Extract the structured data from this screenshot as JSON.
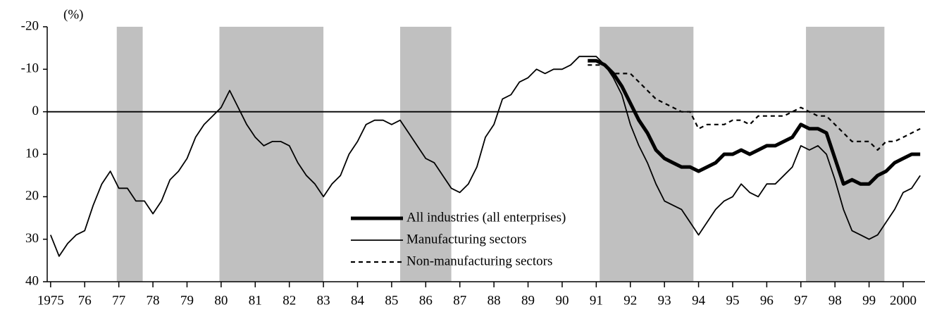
{
  "chart_data": {
    "type": "line",
    "y_unit_label": "(%)",
    "xlim": [
      1974.9,
      2000.64
    ],
    "xticks": [
      {
        "value": 1975,
        "label": "1975"
      },
      {
        "value": 1976,
        "label": "76"
      },
      {
        "value": 1977,
        "label": "77"
      },
      {
        "value": 1978,
        "label": "78"
      },
      {
        "value": 1979,
        "label": "79"
      },
      {
        "value": 1980,
        "label": "80"
      },
      {
        "value": 1981,
        "label": "81"
      },
      {
        "value": 1982,
        "label": "82"
      },
      {
        "value": 1983,
        "label": "83"
      },
      {
        "value": 1984,
        "label": "84"
      },
      {
        "value": 1985,
        "label": "85"
      },
      {
        "value": 1986,
        "label": "86"
      },
      {
        "value": 1987,
        "label": "87"
      },
      {
        "value": 1988,
        "label": "88"
      },
      {
        "value": 1989,
        "label": "89"
      },
      {
        "value": 1990,
        "label": "90"
      },
      {
        "value": 1991,
        "label": "91"
      },
      {
        "value": 1992,
        "label": "92"
      },
      {
        "value": 1993,
        "label": "93"
      },
      {
        "value": 1994,
        "label": "94"
      },
      {
        "value": 1995,
        "label": "95"
      },
      {
        "value": 1996,
        "label": "96"
      },
      {
        "value": 1997,
        "label": "97"
      },
      {
        "value": 1998,
        "label": "98"
      },
      {
        "value": 1999,
        "label": "99"
      },
      {
        "value": 2000,
        "label": "2000"
      }
    ],
    "ylim": [
      -20,
      40
    ],
    "y_inverted": true,
    "yticks": [
      -20,
      -10,
      0,
      10,
      20,
      30,
      40
    ],
    "reference_line": 0,
    "shaded_periods": [
      [
        1976.94,
        1977.7
      ],
      [
        1979.95,
        1983.0
      ],
      [
        1985.25,
        1986.75
      ],
      [
        1991.1,
        1993.85
      ],
      [
        1997.15,
        1999.45
      ]
    ],
    "shade_color": "#c0c0c0",
    "x": [
      1975,
      1975.25,
      1975.5,
      1975.75,
      1976,
      1976.25,
      1976.5,
      1976.75,
      1977,
      1977.25,
      1977.5,
      1977.75,
      1978,
      1978.25,
      1978.5,
      1978.75,
      1979,
      1979.25,
      1979.5,
      1979.75,
      1980,
      1980.25,
      1980.5,
      1980.75,
      1981,
      1981.25,
      1981.5,
      1981.75,
      1982,
      1982.25,
      1982.5,
      1982.75,
      1983,
      1983.25,
      1983.5,
      1983.75,
      1984,
      1984.25,
      1984.5,
      1984.75,
      1985,
      1985.25,
      1985.5,
      1985.75,
      1986,
      1986.25,
      1986.5,
      1986.75,
      1987,
      1987.25,
      1987.5,
      1987.75,
      1988,
      1988.25,
      1988.5,
      1988.75,
      1989,
      1989.25,
      1989.5,
      1989.75,
      1990,
      1990.25,
      1990.5,
      1990.75,
      1991,
      1991.25,
      1991.5,
      1991.75,
      1992,
      1992.25,
      1992.5,
      1992.75,
      1993,
      1993.25,
      1993.5,
      1993.75,
      1994,
      1994.25,
      1994.5,
      1994.75,
      1995,
      1995.25,
      1995.5,
      1995.75,
      1996,
      1996.25,
      1996.5,
      1996.75,
      1997,
      1997.25,
      1997.5,
      1997.75,
      1998,
      1998.25,
      1998.5,
      1998.75,
      1999,
      1999.25,
      1999.5,
      1999.75,
      2000,
      2000.25,
      2000.5
    ],
    "series": [
      {
        "name": "All industries (all enterprises)",
        "color": "#000000",
        "width": 5,
        "dashed": false,
        "values": [
          null,
          null,
          null,
          null,
          null,
          null,
          null,
          null,
          null,
          null,
          null,
          null,
          null,
          null,
          null,
          null,
          null,
          null,
          null,
          null,
          null,
          null,
          null,
          null,
          null,
          null,
          null,
          null,
          null,
          null,
          null,
          null,
          null,
          null,
          null,
          null,
          null,
          null,
          null,
          null,
          null,
          null,
          null,
          null,
          null,
          null,
          null,
          null,
          null,
          null,
          null,
          null,
          null,
          null,
          null,
          null,
          null,
          null,
          null,
          null,
          null,
          null,
          null,
          -12,
          -12,
          -11,
          -9,
          -6,
          -2,
          2,
          5,
          9,
          11,
          12,
          13,
          13,
          14,
          13,
          12,
          10,
          10,
          9,
          10,
          9,
          8,
          8,
          7,
          6,
          3,
          4,
          4,
          5,
          11,
          17,
          16,
          17,
          17,
          15,
          14,
          12,
          11,
          10,
          10
        ]
      },
      {
        "name": "Manufacturing sectors",
        "color": "#000000",
        "width": 1.8,
        "dashed": false,
        "values": [
          29,
          34,
          31,
          29,
          28,
          22,
          17,
          14,
          18,
          18,
          21,
          21,
          24,
          21,
          16,
          14,
          11,
          6,
          3,
          1,
          -1,
          -5,
          -1,
          3,
          6,
          8,
          7,
          7,
          8,
          12,
          15,
          17,
          20,
          17,
          15,
          10,
          7,
          3,
          2,
          2,
          3,
          2,
          5,
          8,
          11,
          12,
          15,
          18,
          19,
          17,
          13,
          6,
          3,
          -3,
          -4,
          -7,
          -8,
          -10,
          -9,
          -10,
          -10,
          -11,
          -13,
          -13,
          -13,
          -11,
          -8,
          -4,
          3,
          8,
          12,
          17,
          21,
          22,
          23,
          26,
          29,
          26,
          23,
          21,
          20,
          17,
          19,
          20,
          17,
          17,
          15,
          13,
          8,
          9,
          8,
          10,
          16,
          23,
          28,
          29,
          30,
          29,
          26,
          23,
          19,
          18,
          15
        ]
      },
      {
        "name": "Non-manufacturing sectors",
        "color": "#000000",
        "width": 2.2,
        "dashed": true,
        "values": [
          null,
          null,
          null,
          null,
          null,
          null,
          null,
          null,
          null,
          null,
          null,
          null,
          null,
          null,
          null,
          null,
          null,
          null,
          null,
          null,
          null,
          null,
          null,
          null,
          null,
          null,
          null,
          null,
          null,
          null,
          null,
          null,
          null,
          null,
          null,
          null,
          null,
          null,
          null,
          null,
          null,
          null,
          null,
          null,
          null,
          null,
          null,
          null,
          null,
          null,
          null,
          null,
          null,
          null,
          null,
          null,
          null,
          null,
          null,
          null,
          null,
          null,
          null,
          -11,
          -11,
          -11,
          -9,
          -9,
          -9,
          -7,
          -5,
          -3,
          -2,
          -1,
          0,
          0,
          4,
          3,
          3,
          3,
          2,
          2,
          3,
          1,
          1,
          1,
          1,
          0,
          -1,
          0,
          1,
          1,
          3,
          5,
          7,
          7,
          7,
          9,
          7,
          7,
          6,
          5,
          4
        ]
      }
    ]
  }
}
